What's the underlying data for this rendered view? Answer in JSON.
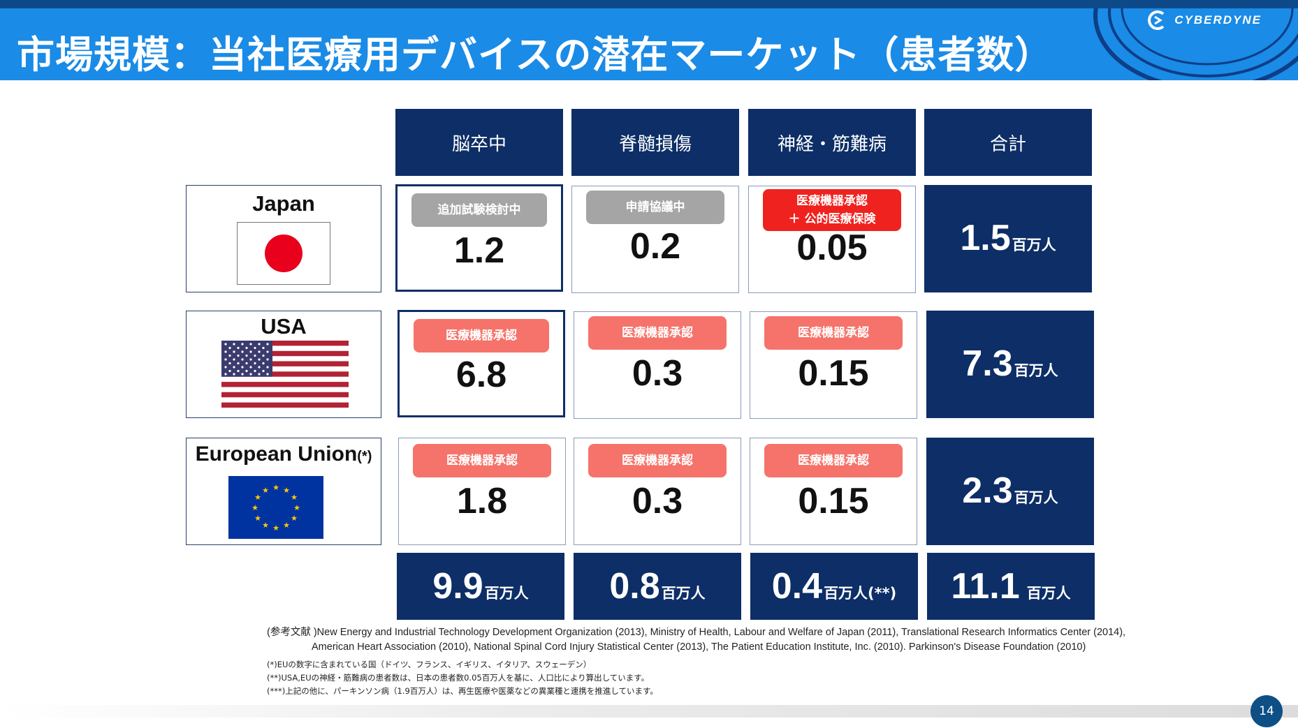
{
  "title": "市場規模：当社医療用デバイスの潜在マーケット（患者数）",
  "logo": {
    "text": "CYBERDYNE",
    "icon": "cyberdyne-logo-icon"
  },
  "columns": [
    "脳卒中",
    "脊髄損傷",
    "神経・筋難病",
    "合計"
  ],
  "rows": [
    {
      "country": "Japan",
      "flag": "japan-flag",
      "cells": [
        {
          "badge": "追加試験検討中",
          "badge_color": "#a5a5a5",
          "value": "1.2"
        },
        {
          "badge": "申請協議中",
          "badge_color": "#a5a5a5",
          "value": "0.2"
        },
        {
          "badge_line1": "医療機器承認",
          "badge_line2": "＋ 公的医療保険",
          "badge_color": "#f0221f",
          "value": "0.05"
        }
      ],
      "total": "1.5",
      "total_unit": "百万人"
    },
    {
      "country": "USA",
      "flag": "usa-flag",
      "cells": [
        {
          "badge": "医療機器承認",
          "badge_color": "#f5736a",
          "value": "6.8"
        },
        {
          "badge": "医療機器承認",
          "badge_color": "#f5736a",
          "value": "0.3"
        },
        {
          "badge": "医療機器承認",
          "badge_color": "#f5736a",
          "value": "0.15"
        }
      ],
      "total": "7.3",
      "total_unit": "百万人"
    },
    {
      "country": "European Union",
      "country_note": "(*)",
      "flag": "eu-flag",
      "cells": [
        {
          "badge": "医療機器承認",
          "badge_color": "#f5736a",
          "value": "1.8"
        },
        {
          "badge": "医療機器承認",
          "badge_color": "#f5736a",
          "value": "0.3"
        },
        {
          "badge": "医療機器承認",
          "badge_color": "#f5736a",
          "value": "0.15"
        }
      ],
      "total": "2.3",
      "total_unit": "百万人"
    }
  ],
  "column_totals": [
    {
      "value": "9.9",
      "unit": "百万人"
    },
    {
      "value": "0.8",
      "unit": "百万人"
    },
    {
      "value": "0.4",
      "unit": "百万人(**)"
    },
    {
      "value": "11.1",
      "unit": "百万人"
    }
  ],
  "references": {
    "line1": "(参考文献 )New Energy and Industrial Technology Development Organization (2013), Ministry of Health, Labour and Welfare of Japan (2011), Translational Research Informatics Center (2014),",
    "line2": "American Heart Association (2010), National Spinal Cord Injury Statistical Center (2013), The Patient Education Institute, Inc. (2010). Parkinson's Disease Foundation (2010)"
  },
  "notes": [
    "(*)EUの数字に含まれている国（ドイツ、フランス、イギリス、イタリア、スウェーデン）",
    "(**)USA,EUの神経・筋難病の患者数は、日本の患者数0.05百万人を基に、人口比により算出しています。",
    "(***)上記の他に、パーキンソン病（1.9百万人）は、再生医療や医薬などの異業種と連携を推進しています。"
  ],
  "page_number": "14",
  "colors": {
    "header": "#1a8be6",
    "navy": "#0d2e66",
    "salmon": "#f5736a",
    "red": "#f0221f",
    "gray": "#a5a5a5"
  }
}
